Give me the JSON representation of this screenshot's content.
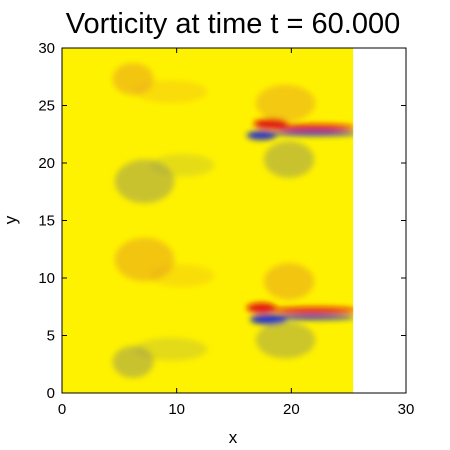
{
  "chart_data": {
    "type": "heatmap",
    "title": "Vorticity at time t = 60.000",
    "xlabel": "x",
    "ylabel": "y",
    "xlim": [
      0,
      30
    ],
    "ylim": [
      0,
      30
    ],
    "xticks": [
      0,
      10,
      20,
      30
    ],
    "yticks": [
      0,
      5,
      10,
      15,
      20,
      25,
      30
    ],
    "xtick_labels": [
      "0",
      "10",
      "20",
      "30"
    ],
    "ytick_labels": [
      "0",
      "5",
      "10",
      "15",
      "20",
      "25",
      "30"
    ],
    "grid": false,
    "colors": {
      "background": "#fff200",
      "positive": "#e8a020",
      "strong_positive": "#e01010",
      "negative": "#9a9a55",
      "strong_negative": "#1a2ad0"
    },
    "domain_right_edge": 25.4,
    "features": [
      {
        "sign": "positive",
        "x": 6.2,
        "y": 27.3,
        "rx": 1.8,
        "ry": 1.4,
        "intensity": 0.55
      },
      {
        "sign": "positive",
        "x": 9.5,
        "y": 26.2,
        "rx": 3.2,
        "ry": 1.0,
        "intensity": 0.28
      },
      {
        "sign": "negative",
        "x": 7.2,
        "y": 18.4,
        "rx": 2.6,
        "ry": 1.9,
        "intensity": 0.55
      },
      {
        "sign": "negative",
        "x": 10.5,
        "y": 19.8,
        "rx": 2.8,
        "ry": 1.0,
        "intensity": 0.25
      },
      {
        "sign": "positive",
        "x": 7.2,
        "y": 11.6,
        "rx": 2.6,
        "ry": 1.9,
        "intensity": 0.55
      },
      {
        "sign": "positive",
        "x": 10.5,
        "y": 10.2,
        "rx": 2.8,
        "ry": 1.0,
        "intensity": 0.25
      },
      {
        "sign": "negative",
        "x": 6.2,
        "y": 2.7,
        "rx": 1.8,
        "ry": 1.4,
        "intensity": 0.55
      },
      {
        "sign": "negative",
        "x": 9.5,
        "y": 3.8,
        "rx": 3.2,
        "ry": 1.0,
        "intensity": 0.28
      },
      {
        "sign": "positive",
        "x": 19.5,
        "y": 25.2,
        "rx": 2.6,
        "ry": 1.6,
        "intensity": 0.5
      },
      {
        "sign": "strong_positive",
        "x": 18.2,
        "y": 23.4,
        "rx": 1.5,
        "ry": 0.45,
        "intensity": 0.95
      },
      {
        "sign": "strong_positive",
        "x": 21.8,
        "y": 23.1,
        "rx": 3.8,
        "ry": 0.3,
        "intensity": 0.85
      },
      {
        "sign": "strong_negative",
        "x": 17.4,
        "y": 22.4,
        "rx": 1.3,
        "ry": 0.4,
        "intensity": 0.95
      },
      {
        "sign": "strong_negative",
        "x": 22.0,
        "y": 22.6,
        "rx": 3.8,
        "ry": 0.25,
        "intensity": 0.85
      },
      {
        "sign": "negative",
        "x": 19.8,
        "y": 20.3,
        "rx": 2.2,
        "ry": 1.6,
        "intensity": 0.55
      },
      {
        "sign": "positive",
        "x": 19.8,
        "y": 9.7,
        "rx": 2.2,
        "ry": 1.6,
        "intensity": 0.55
      },
      {
        "sign": "strong_positive",
        "x": 17.4,
        "y": 7.4,
        "rx": 1.3,
        "ry": 0.45,
        "intensity": 0.95
      },
      {
        "sign": "strong_positive",
        "x": 22.0,
        "y": 7.2,
        "rx": 3.8,
        "ry": 0.3,
        "intensity": 0.85
      },
      {
        "sign": "strong_negative",
        "x": 18.0,
        "y": 6.4,
        "rx": 1.6,
        "ry": 0.45,
        "intensity": 0.95
      },
      {
        "sign": "strong_negative",
        "x": 21.8,
        "y": 6.6,
        "rx": 3.8,
        "ry": 0.25,
        "intensity": 0.85
      },
      {
        "sign": "negative",
        "x": 19.5,
        "y": 4.6,
        "rx": 2.6,
        "ry": 1.6,
        "intensity": 0.5
      }
    ]
  }
}
